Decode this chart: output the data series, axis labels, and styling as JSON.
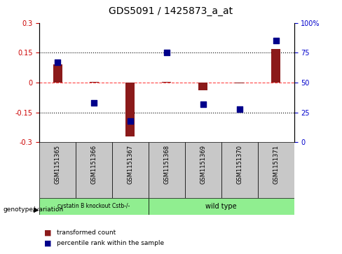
{
  "title": "GDS5091 / 1425873_a_at",
  "samples": [
    "GSM1151365",
    "GSM1151366",
    "GSM1151367",
    "GSM1151368",
    "GSM1151369",
    "GSM1151370",
    "GSM1151371"
  ],
  "transformed_count": [
    0.09,
    0.005,
    -0.27,
    0.005,
    -0.04,
    -0.005,
    0.17
  ],
  "percentile_rank": [
    67,
    33,
    18,
    75,
    32,
    28,
    85
  ],
  "bar_color": "#8B1A1A",
  "dot_color": "#00008B",
  "zero_line_color": "#FF4444",
  "ylim": [
    -0.3,
    0.3
  ],
  "y2lim": [
    0,
    100
  ],
  "yticks": [
    -0.3,
    -0.15,
    0,
    0.15,
    0.3
  ],
  "y2ticks": [
    0,
    25,
    50,
    75,
    100
  ],
  "hline_values": [
    0.15,
    -0.15
  ],
  "genotype_groups": [
    {
      "label": "cystatin B knockout Cstb-/-",
      "start": 0,
      "end": 3,
      "color": "#90EE90"
    },
    {
      "label": "wild type",
      "start": 3,
      "end": 7,
      "color": "#90EE90"
    }
  ],
  "genotype_label": "genotype/variation",
  "legend_items": [
    {
      "label": "transformed count",
      "color": "#8B1A1A"
    },
    {
      "label": "percentile rank within the sample",
      "color": "#00008B"
    }
  ],
  "bar_width": 0.25,
  "dot_size": 28,
  "tick_label_color_left": "#CC0000",
  "tick_label_color_right": "#0000CC",
  "sample_box_color": "#C8C8C8",
  "label_fontsize": 7,
  "tick_fontsize": 7
}
